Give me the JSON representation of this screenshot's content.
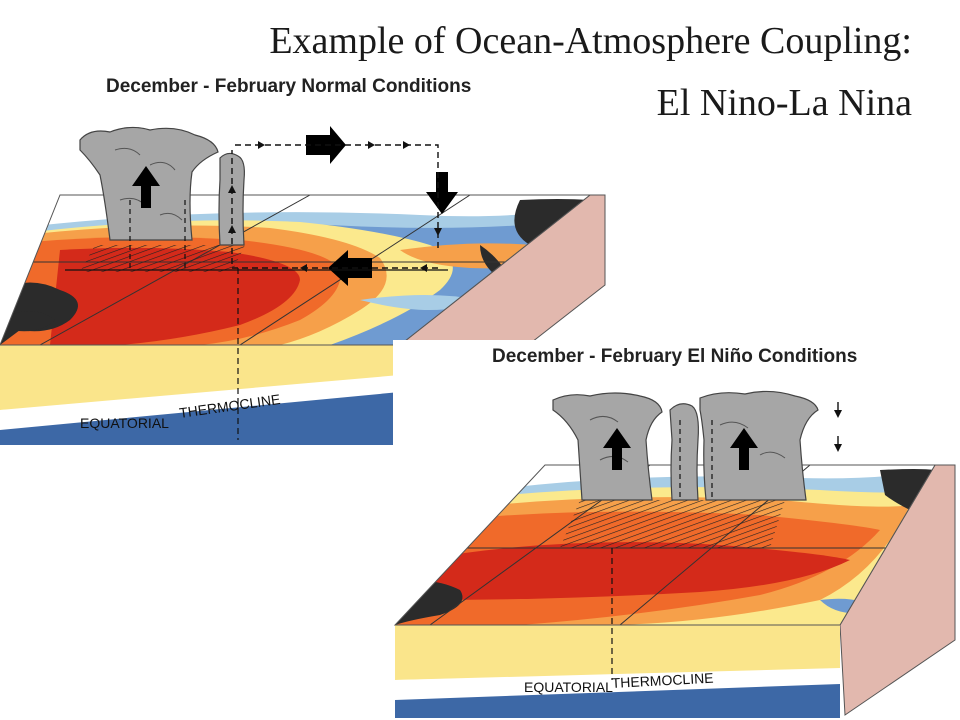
{
  "title_line1": "Example of Ocean-Atmosphere Coupling:",
  "title_line2": "El Nino-La Nina",
  "panels": [
    {
      "heading": "December - February Normal Conditions",
      "label_a": "EQUATORIAL",
      "label_b": "THERMOCLINE"
    },
    {
      "heading": "December - February El Niño Conditions",
      "label_a": "EQUATORIAL",
      "label_b": "THERMOCLINE"
    }
  ],
  "colors": {
    "deep_ocean": "#3d68a6",
    "upper_ocean": "#fae58b",
    "land": "#2b2b2b",
    "side_wall": "#e2b8ae",
    "cloud": "#a6a6a6",
    "warm_core": "#d42a1a",
    "cool": "#a8cde6"
  }
}
